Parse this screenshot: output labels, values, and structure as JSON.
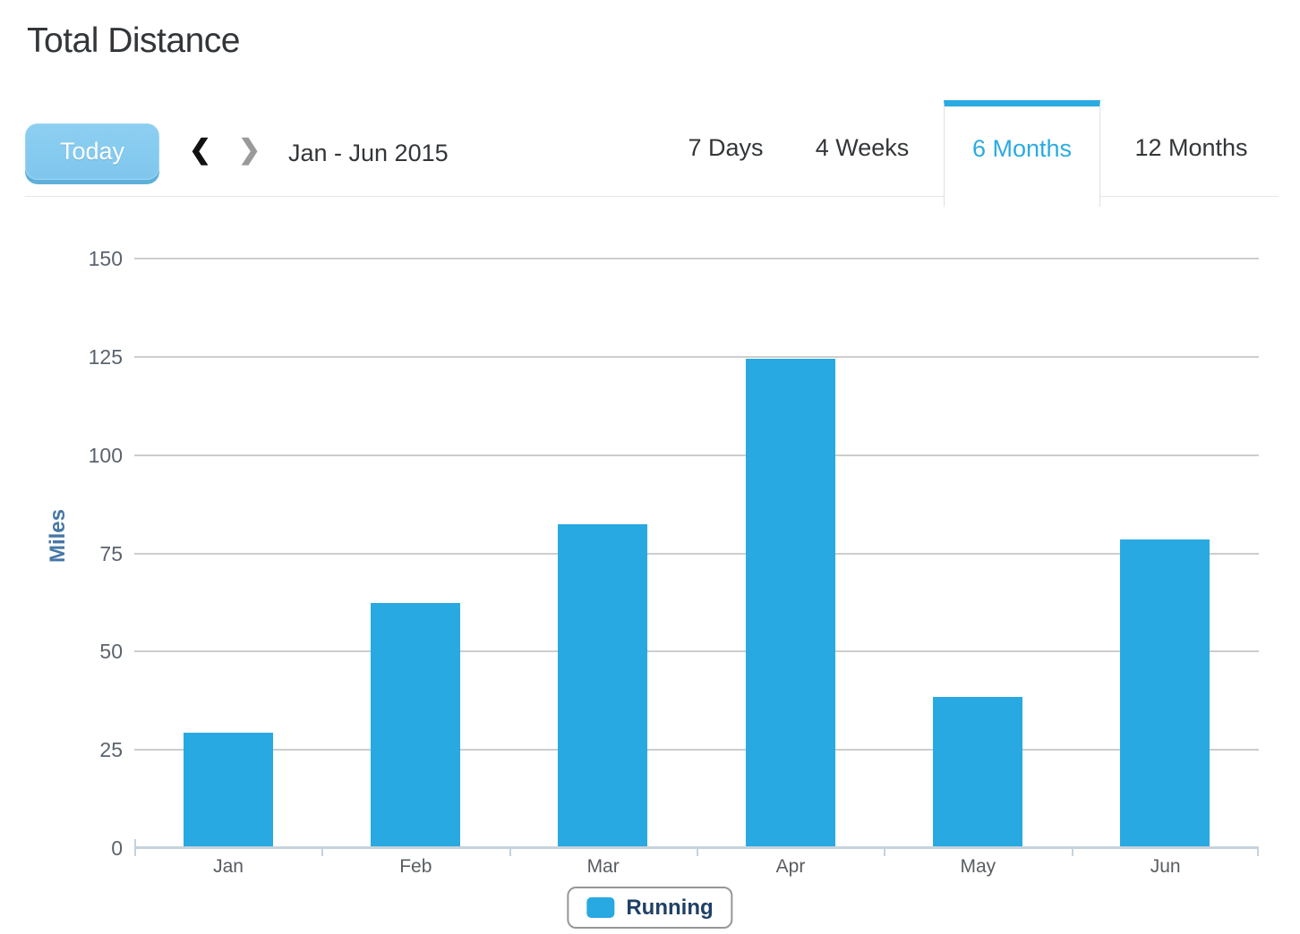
{
  "page": {
    "title": "Total Distance"
  },
  "toolbar": {
    "today_label": "Today",
    "prev_icon": "❮",
    "next_icon": "❯",
    "period_label": "Jan - Jun 2015"
  },
  "tabs": {
    "active": "6 Months",
    "items": [
      {
        "label": "7 Days",
        "active": false
      },
      {
        "label": "4 Weeks",
        "active": false
      },
      {
        "label": "6 Months",
        "active": true
      },
      {
        "label": "12 Months",
        "active": false
      }
    ]
  },
  "colors": {
    "accent_blue": "#29ABE2",
    "bar_blue": "#29A9E1",
    "today_button_blue": "#7FC6EE",
    "axis_line": "#C6D3DC",
    "gridline": "#CDCDCD",
    "legend_text": "#1F4066",
    "ylabel_title": "#4677A6"
  },
  "chart_data": {
    "type": "bar",
    "title": "Total Distance",
    "categories": [
      "Jan",
      "Feb",
      "Mar",
      "Apr",
      "May",
      "Jun"
    ],
    "series": [
      {
        "name": "Running",
        "color": "#29A9E1",
        "values": [
          29,
          62,
          82,
          124,
          38,
          78
        ]
      }
    ],
    "xlabel": "",
    "ylabel": "Miles",
    "ylim": [
      0,
      150
    ],
    "yticks": [
      0,
      25,
      50,
      75,
      100,
      125,
      150
    ],
    "grid": true,
    "legend_position": "bottom"
  },
  "legend": {
    "items": [
      {
        "label": "Running",
        "color": "#29A9E1"
      }
    ]
  }
}
